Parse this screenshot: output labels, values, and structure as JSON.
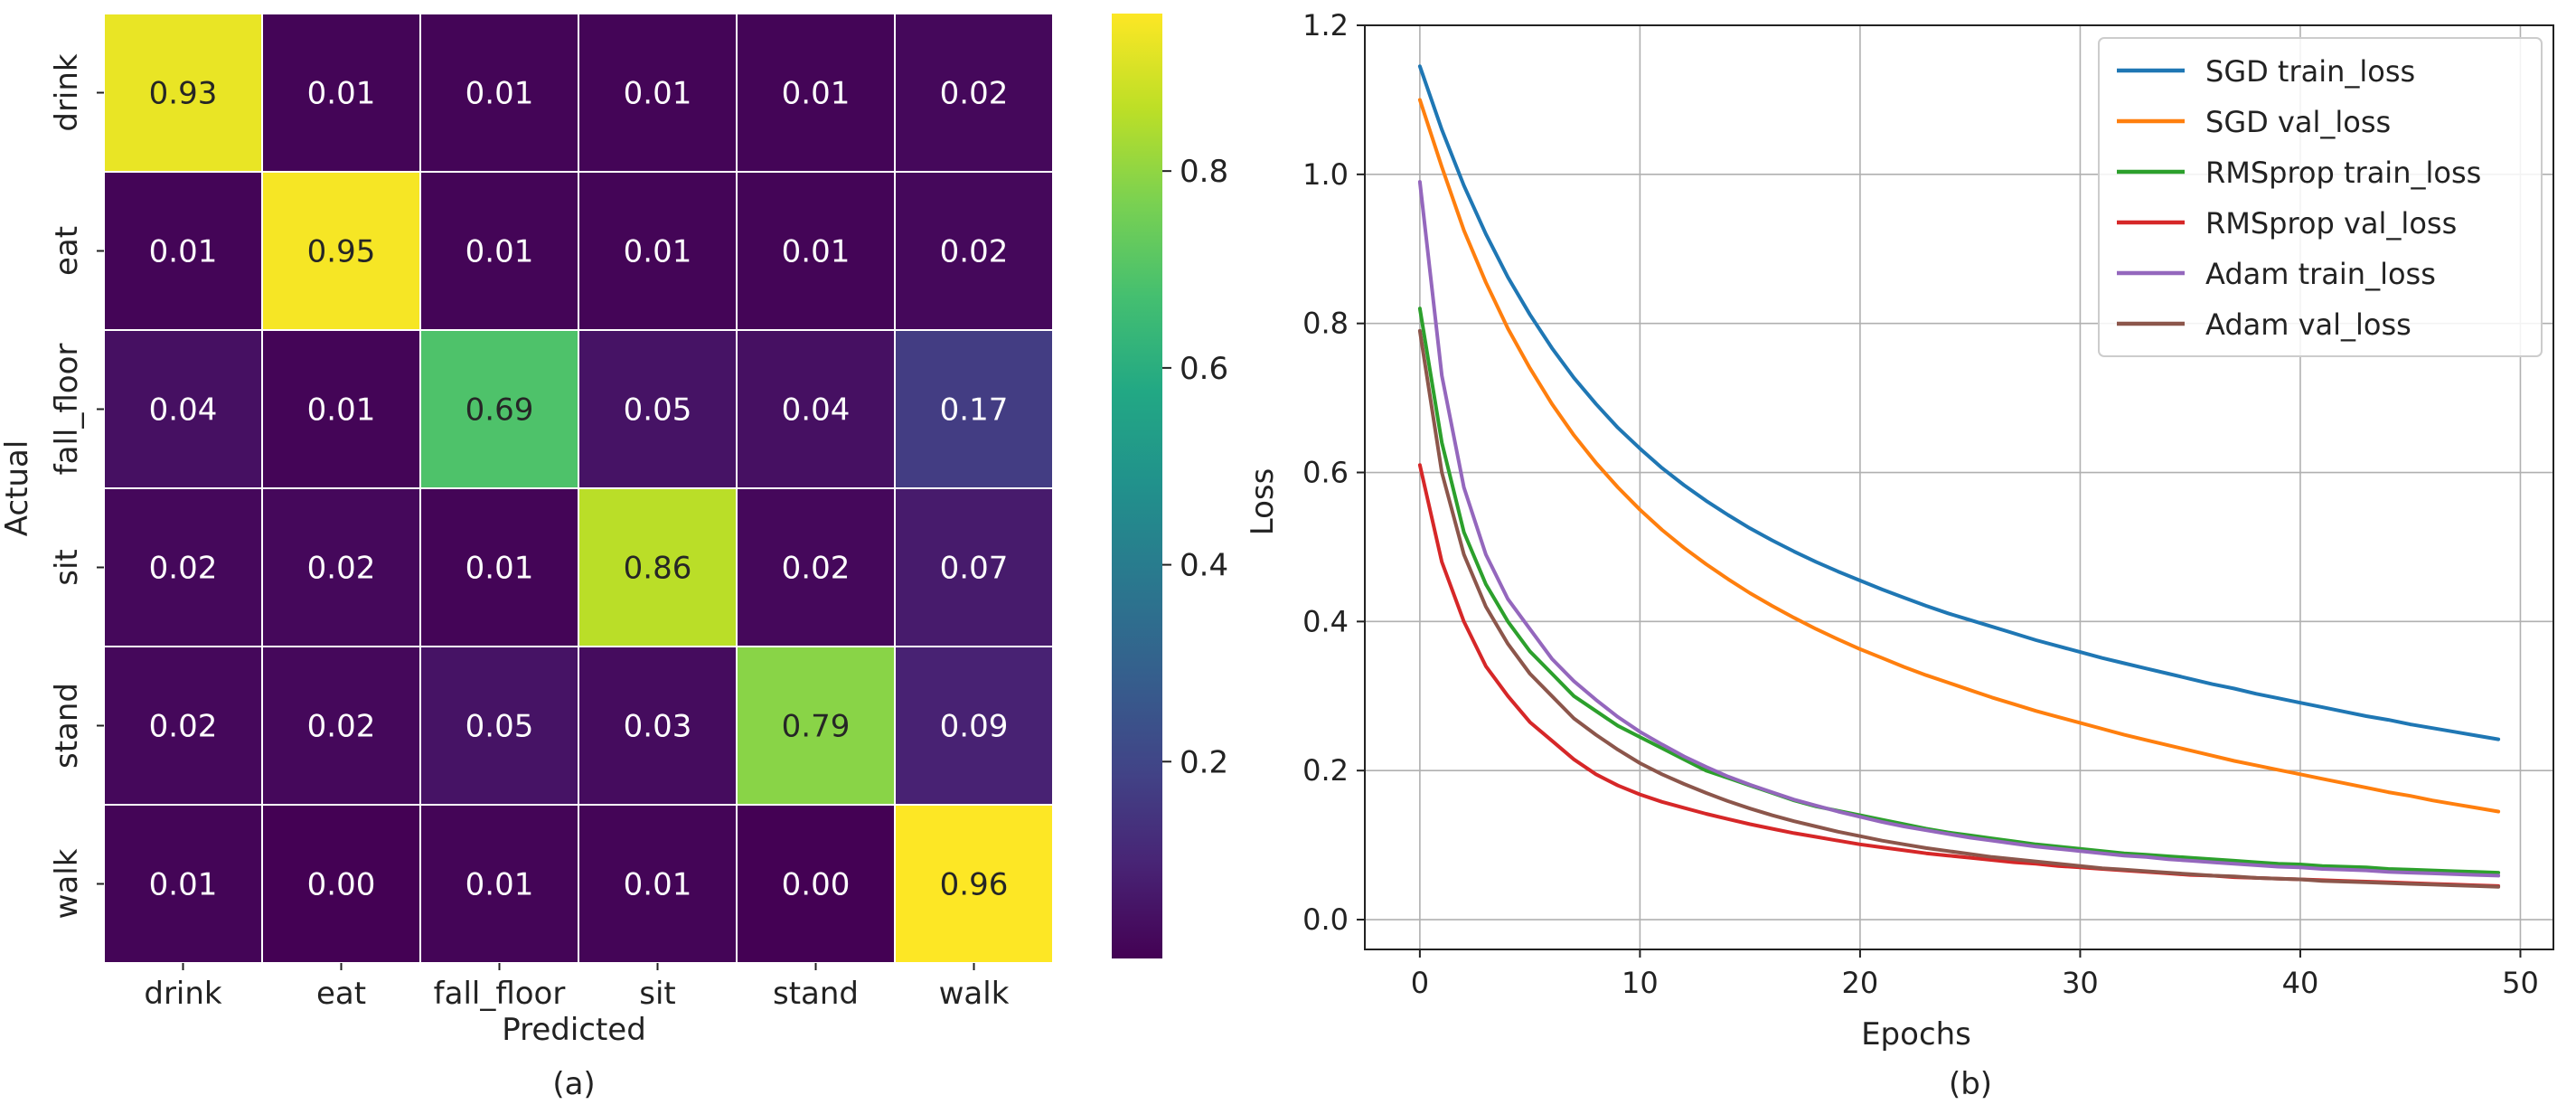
{
  "chart_data": [
    {
      "type": "heatmap",
      "caption": "(a)",
      "xlabel": "Predicted",
      "ylabel": "Actual",
      "x_categories": [
        "drink",
        "eat",
        "fall_floor",
        "sit",
        "stand",
        "walk"
      ],
      "y_categories": [
        "drink",
        "eat",
        "fall_floor",
        "sit",
        "stand",
        "walk"
      ],
      "values": [
        [
          0.93,
          0.01,
          0.01,
          0.01,
          0.01,
          0.02
        ],
        [
          0.01,
          0.95,
          0.01,
          0.01,
          0.01,
          0.02
        ],
        [
          0.04,
          0.01,
          0.69,
          0.05,
          0.04,
          0.17
        ],
        [
          0.02,
          0.02,
          0.01,
          0.86,
          0.02,
          0.07
        ],
        [
          0.02,
          0.02,
          0.05,
          0.03,
          0.79,
          0.09
        ],
        [
          0.01,
          0.0,
          0.01,
          0.01,
          0.0,
          0.96
        ]
      ],
      "labels": [
        [
          "0.93",
          "0.01",
          "0.01",
          "0.01",
          "0.01",
          "0.02"
        ],
        [
          "0.01",
          "0.95",
          "0.01",
          "0.01",
          "0.01",
          "0.02"
        ],
        [
          "0.04",
          "0.01",
          "0.69",
          "0.05",
          "0.04",
          "0.17"
        ],
        [
          "0.02",
          "0.02",
          "0.01",
          "0.86",
          "0.02",
          "0.07"
        ],
        [
          "0.02",
          "0.02",
          "0.05",
          "0.03",
          "0.79",
          "0.09"
        ],
        [
          "0.01",
          "0.00",
          "0.01",
          "0.01",
          "0.00",
          "0.96"
        ]
      ],
      "colormap": "viridis",
      "vmin": 0.0,
      "vmax": 0.96,
      "colorbar_ticks": [
        0.2,
        0.4,
        0.6,
        0.8
      ],
      "colorbar_tick_labels": [
        "0.2",
        "0.4",
        "0.6",
        "0.8"
      ],
      "grid_color": "#ffffff"
    },
    {
      "type": "line",
      "caption": "(b)",
      "xlabel": "Epochs",
      "ylabel": "Loss",
      "xlim": [
        -2.5,
        51.5
      ],
      "ylim": [
        -0.04,
        1.2
      ],
      "xticks": [
        0,
        10,
        20,
        30,
        40,
        50
      ],
      "xtick_labels": [
        "0",
        "10",
        "20",
        "30",
        "40",
        "50"
      ],
      "yticks": [
        0.0,
        0.2,
        0.4,
        0.6,
        0.8,
        1.0,
        1.2
      ],
      "ytick_labels": [
        "0.0",
        "0.2",
        "0.4",
        "0.6",
        "0.8",
        "1.0",
        "1.2"
      ],
      "grid": true,
      "legend_location": "top-right",
      "series": [
        {
          "name": "SGD train_loss",
          "color": "#1f77b4",
          "values": [
            1.145,
            1.06,
            0.985,
            0.92,
            0.862,
            0.812,
            0.767,
            0.727,
            0.692,
            0.66,
            0.632,
            0.606,
            0.583,
            0.562,
            0.543,
            0.525,
            0.509,
            0.494,
            0.48,
            0.467,
            0.455,
            0.443,
            0.432,
            0.421,
            0.411,
            0.402,
            0.393,
            0.384,
            0.375,
            0.367,
            0.359,
            0.351,
            0.344,
            0.337,
            0.33,
            0.323,
            0.316,
            0.31,
            0.303,
            0.297,
            0.291,
            0.285,
            0.279,
            0.273,
            0.268,
            0.262,
            0.257,
            0.252,
            0.247,
            0.242
          ]
        },
        {
          "name": "SGD val_loss",
          "color": "#ff7f0e",
          "values": [
            1.1,
            1.01,
            0.925,
            0.855,
            0.793,
            0.74,
            0.692,
            0.65,
            0.613,
            0.58,
            0.55,
            0.523,
            0.499,
            0.477,
            0.457,
            0.438,
            0.421,
            0.405,
            0.39,
            0.376,
            0.363,
            0.351,
            0.339,
            0.328,
            0.318,
            0.308,
            0.298,
            0.289,
            0.28,
            0.272,
            0.264,
            0.256,
            0.248,
            0.241,
            0.234,
            0.227,
            0.22,
            0.213,
            0.207,
            0.201,
            0.195,
            0.189,
            0.183,
            0.177,
            0.171,
            0.166,
            0.16,
            0.155,
            0.15,
            0.145
          ]
        },
        {
          "name": "RMSprop train_loss",
          "color": "#2ca02c",
          "values": [
            0.82,
            0.64,
            0.52,
            0.45,
            0.4,
            0.36,
            0.33,
            0.3,
            0.28,
            0.26,
            0.245,
            0.23,
            0.215,
            0.2,
            0.19,
            0.18,
            0.17,
            0.16,
            0.152,
            0.146,
            0.14,
            0.134,
            0.128,
            0.122,
            0.117,
            0.113,
            0.109,
            0.105,
            0.101,
            0.098,
            0.095,
            0.092,
            0.089,
            0.087,
            0.085,
            0.083,
            0.081,
            0.079,
            0.077,
            0.075,
            0.074,
            0.072,
            0.071,
            0.07,
            0.068,
            0.067,
            0.066,
            0.065,
            0.064,
            0.063
          ]
        },
        {
          "name": "RMSprop val_loss",
          "color": "#d62728",
          "values": [
            0.61,
            0.48,
            0.4,
            0.34,
            0.3,
            0.265,
            0.24,
            0.215,
            0.195,
            0.18,
            0.168,
            0.158,
            0.15,
            0.142,
            0.135,
            0.128,
            0.122,
            0.116,
            0.111,
            0.106,
            0.101,
            0.097,
            0.093,
            0.089,
            0.086,
            0.083,
            0.08,
            0.077,
            0.075,
            0.072,
            0.07,
            0.068,
            0.066,
            0.064,
            0.062,
            0.06,
            0.059,
            0.057,
            0.056,
            0.055,
            0.054,
            0.053,
            0.052,
            0.051,
            0.05,
            0.049,
            0.048,
            0.047,
            0.046,
            0.045
          ]
        },
        {
          "name": "Adam train_loss",
          "color": "#9467bd",
          "values": [
            0.99,
            0.73,
            0.58,
            0.49,
            0.43,
            0.39,
            0.35,
            0.32,
            0.295,
            0.272,
            0.252,
            0.235,
            0.219,
            0.205,
            0.192,
            0.181,
            0.171,
            0.161,
            0.153,
            0.145,
            0.138,
            0.131,
            0.125,
            0.12,
            0.115,
            0.11,
            0.106,
            0.102,
            0.098,
            0.095,
            0.092,
            0.089,
            0.086,
            0.084,
            0.081,
            0.079,
            0.077,
            0.075,
            0.073,
            0.071,
            0.07,
            0.068,
            0.067,
            0.066,
            0.064,
            0.063,
            0.062,
            0.061,
            0.06,
            0.059
          ]
        },
        {
          "name": "Adam val_loss",
          "color": "#8c564b",
          "values": [
            0.79,
            0.6,
            0.49,
            0.42,
            0.37,
            0.33,
            0.3,
            0.27,
            0.248,
            0.228,
            0.21,
            0.195,
            0.182,
            0.17,
            0.159,
            0.149,
            0.14,
            0.132,
            0.125,
            0.118,
            0.112,
            0.106,
            0.101,
            0.096,
            0.092,
            0.088,
            0.084,
            0.081,
            0.078,
            0.075,
            0.072,
            0.069,
            0.067,
            0.065,
            0.063,
            0.061,
            0.059,
            0.058,
            0.056,
            0.055,
            0.054,
            0.052,
            0.051,
            0.05,
            0.049,
            0.048,
            0.047,
            0.046,
            0.045,
            0.044
          ]
        }
      ]
    }
  ]
}
